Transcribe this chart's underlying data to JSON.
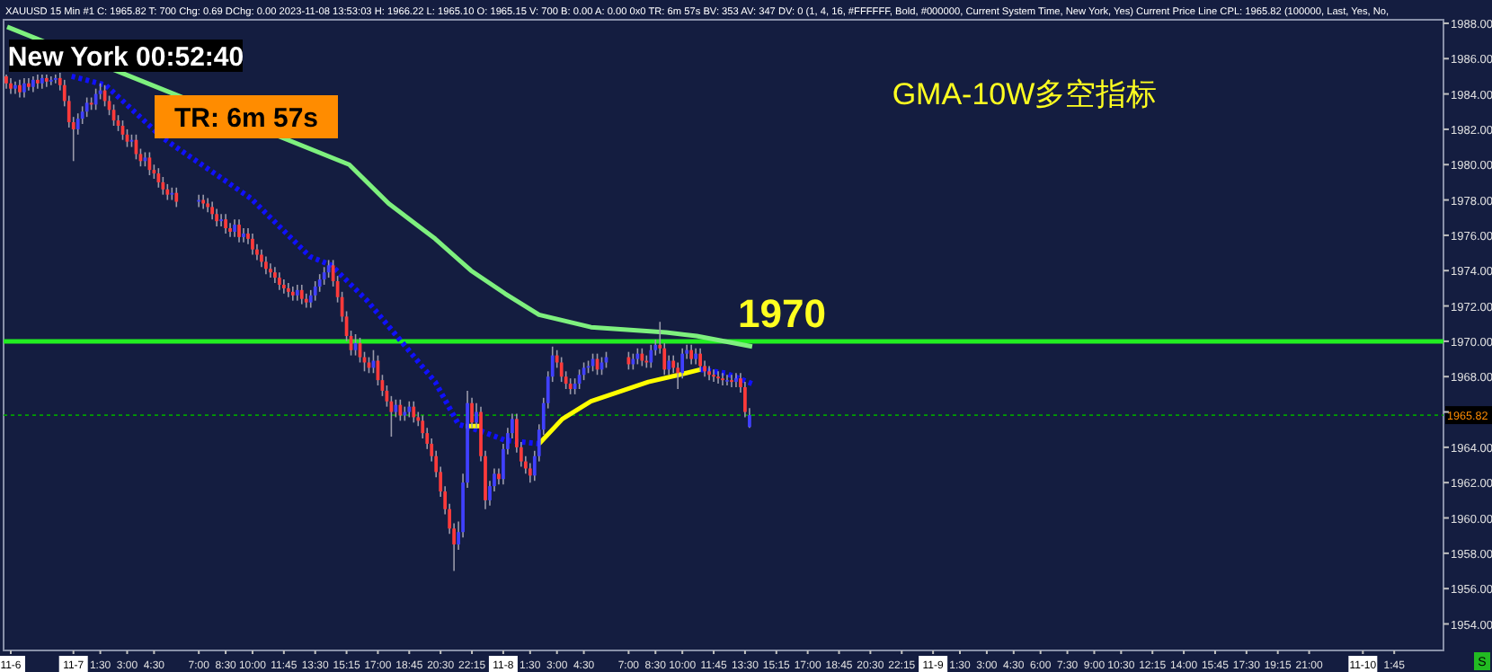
{
  "chart_data": {
    "type": "candlestick",
    "title": "GMA-10W多空指标",
    "subtitle": "XAUUSD  15 Min  #1  C: 1965.82  T: 700  Chg: 0.69  DChg: 0.00  2023-11-08 13:53:03  H: 1966.22  L: 1965.10  O: 1965.15  V: 700  B: 0.00  A: 0.00  0x0  TR: 6m 57s  BV: 353  AV: 347  DV: 0  (1, 4, 16, #FFFFFF, Bold, #000000, Current System Time, New York, Yes)  Current Price Line  CPL: 1965.82  (100000, Last, Yes, No,",
    "annotations": [
      "New York 00:52:40",
      "TR: 6m 57s",
      "S"
    ],
    "x": [
      "2023-11-06T20:15",
      "2023-11-06T20:30",
      "2023-11-06T20:45",
      "2023-11-06T21:00",
      "2023-11-06T21:15",
      "2023-11-06T21:30",
      "2023-11-06T21:45",
      "2023-11-06T22:00",
      "2023-11-06T22:15",
      "2023-11-06T22:30",
      "2023-11-06T22:45",
      "2023-11-06T23:00",
      "2023-11-06T23:15",
      "2023-11-06T23:30",
      "2023-11-06T23:45",
      "2023-11-07T00:00",
      "2023-11-07T00:15",
      "2023-11-07T00:30",
      "2023-11-07T00:45",
      "2023-11-07T01:00",
      "2023-11-07T01:15",
      "2023-11-07T01:30",
      "2023-11-07T01:45",
      "2023-11-07T02:00",
      "2023-11-07T02:15",
      "2023-11-07T02:30",
      "2023-11-07T02:45",
      "2023-11-07T03:00",
      "2023-11-07T03:15",
      "2023-11-07T03:30",
      "2023-11-07T03:45",
      "2023-11-07T04:00",
      "2023-11-07T04:15",
      "2023-11-07T04:30",
      "2023-11-07T04:45",
      "2023-11-07T05:00",
      "2023-11-07T05:15",
      "2023-11-07T05:30",
      "2023-11-07T05:45",
      "2023-11-07T07:00",
      "2023-11-07T07:15",
      "2023-11-07T07:30",
      "2023-11-07T07:45",
      "2023-11-07T08:00",
      "2023-11-07T08:15",
      "2023-11-07T08:30",
      "2023-11-07T08:45",
      "2023-11-07T09:00",
      "2023-11-07T09:15",
      "2023-11-07T09:30",
      "2023-11-07T09:45",
      "2023-11-07T10:00",
      "2023-11-07T10:15",
      "2023-11-07T10:30",
      "2023-11-07T10:45",
      "2023-11-07T11:00",
      "2023-11-07T11:15",
      "2023-11-07T11:30",
      "2023-11-07T11:45",
      "2023-11-07T12:00",
      "2023-11-07T12:15",
      "2023-11-07T12:30",
      "2023-11-07T12:45",
      "2023-11-07T13:00",
      "2023-11-07T13:15",
      "2023-11-07T13:30",
      "2023-11-07T13:45",
      "2023-11-07T14:00",
      "2023-11-07T14:15",
      "2023-11-07T14:30",
      "2023-11-07T14:45",
      "2023-11-07T15:00",
      "2023-11-07T15:15",
      "2023-11-07T15:30",
      "2023-11-07T15:45",
      "2023-11-07T16:00",
      "2023-11-07T16:15",
      "2023-11-07T16:30",
      "2023-11-07T16:45",
      "2023-11-07T17:00",
      "2023-11-07T17:15",
      "2023-11-07T17:30",
      "2023-11-07T17:45",
      "2023-11-07T18:00",
      "2023-11-07T18:15",
      "2023-11-07T18:30",
      "2023-11-07T18:45",
      "2023-11-07T19:00",
      "2023-11-07T19:15",
      "2023-11-07T19:30",
      "2023-11-07T19:45",
      "2023-11-07T20:00",
      "2023-11-07T20:15",
      "2023-11-07T20:30",
      "2023-11-07T20:45",
      "2023-11-07T21:00",
      "2023-11-07T21:15",
      "2023-11-07T21:30",
      "2023-11-07T21:45",
      "2023-11-07T22:00",
      "2023-11-07T22:15",
      "2023-11-07T22:30",
      "2023-11-07T22:45",
      "2023-11-07T23:00",
      "2023-11-07T23:15",
      "2023-11-07T23:30",
      "2023-11-07T23:45",
      "2023-11-08T00:00",
      "2023-11-08T00:15",
      "2023-11-08T00:30",
      "2023-11-08T00:45",
      "2023-11-08T01:00",
      "2023-11-08T01:15",
      "2023-11-08T01:30",
      "2023-11-08T01:45",
      "2023-11-08T02:00",
      "2023-11-08T02:15",
      "2023-11-08T02:30",
      "2023-11-08T02:45",
      "2023-11-08T03:00",
      "2023-11-08T03:15",
      "2023-11-08T03:30",
      "2023-11-08T03:45",
      "2023-11-08T04:00",
      "2023-11-08T04:15",
      "2023-11-08T04:30",
      "2023-11-08T04:45",
      "2023-11-08T05:00",
      "2023-11-08T05:15",
      "2023-11-08T05:30",
      "2023-11-08T05:45",
      "2023-11-08T07:00",
      "2023-11-08T07:15",
      "2023-11-08T07:30",
      "2023-11-08T07:45",
      "2023-11-08T08:00",
      "2023-11-08T08:15",
      "2023-11-08T08:30",
      "2023-11-08T08:45",
      "2023-11-08T09:00",
      "2023-11-08T09:15",
      "2023-11-08T09:30",
      "2023-11-08T09:45",
      "2023-11-08T10:00",
      "2023-11-08T10:15",
      "2023-11-08T10:30",
      "2023-11-08T10:45",
      "2023-11-08T11:00",
      "2023-11-08T11:15",
      "2023-11-08T11:30",
      "2023-11-08T11:45",
      "2023-11-08T12:00",
      "2023-11-08T12:15",
      "2023-11-08T12:30",
      "2023-11-08T12:45",
      "2023-11-08T13:00",
      "2023-11-08T13:15",
      "2023-11-08T13:30",
      "2023-11-08T13:45"
    ],
    "ohlc": [
      [
        1985.0,
        1985.1,
        1984.3,
        1984.6
      ],
      [
        1984.6,
        1984.9,
        1984.0,
        1984.3
      ],
      [
        1984.3,
        1984.7,
        1984.0,
        1984.5
      ],
      [
        1984.5,
        1984.8,
        1983.8,
        1984.1
      ],
      [
        1984.1,
        1984.9,
        1983.8,
        1984.6
      ],
      [
        1984.6,
        1984.9,
        1984.2,
        1984.4
      ],
      [
        1984.4,
        1985.0,
        1984.1,
        1984.8
      ],
      [
        1984.8,
        1985.1,
        1984.3,
        1984.6
      ],
      [
        1984.6,
        1985.1,
        1984.3,
        1984.9
      ],
      [
        1984.9,
        1985.1,
        1984.4,
        1984.7
      ],
      [
        1984.7,
        1985.0,
        1984.5,
        1984.8
      ],
      [
        1984.8,
        1985.1,
        1984.6,
        1984.9
      ],
      [
        1984.9,
        1985.2,
        1984.2,
        1984.5
      ],
      [
        1984.5,
        1984.8,
        1983.3,
        1983.6
      ],
      [
        1983.6,
        1983.9,
        1982.1,
        1982.4
      ],
      [
        1982.4,
        1982.7,
        1980.2,
        1982.0
      ],
      [
        1982.0,
        1982.9,
        1981.7,
        1982.6
      ],
      [
        1982.6,
        1983.3,
        1982.3,
        1983.0
      ],
      [
        1983.0,
        1983.8,
        1982.7,
        1983.5
      ],
      [
        1983.5,
        1983.8,
        1983.1,
        1983.4
      ],
      [
        1983.4,
        1984.3,
        1983.1,
        1984.0
      ],
      [
        1984.0,
        1984.6,
        1983.7,
        1984.2
      ],
      [
        1984.2,
        1984.5,
        1983.3,
        1983.6
      ],
      [
        1983.6,
        1983.9,
        1982.8,
        1983.1
      ],
      [
        1983.1,
        1983.4,
        1982.2,
        1982.5
      ],
      [
        1982.5,
        1982.8,
        1981.9,
        1982.2
      ],
      [
        1982.2,
        1982.5,
        1981.4,
        1981.7
      ],
      [
        1981.7,
        1982.0,
        1981.0,
        1981.3
      ],
      [
        1981.3,
        1981.7,
        1981.0,
        1981.4
      ],
      [
        1981.4,
        1981.7,
        1980.3,
        1980.6
      ],
      [
        1980.6,
        1980.9,
        1979.9,
        1980.2
      ],
      [
        1980.2,
        1980.7,
        1979.9,
        1980.4
      ],
      [
        1980.4,
        1980.7,
        1979.4,
        1979.7
      ],
      [
        1979.7,
        1980.0,
        1979.2,
        1979.5
      ],
      [
        1979.5,
        1979.8,
        1978.7,
        1979.0
      ],
      [
        1979.0,
        1979.3,
        1978.3,
        1978.6
      ],
      [
        1978.6,
        1978.9,
        1978.0,
        1978.3
      ],
      [
        1978.3,
        1978.7,
        1978.0,
        1978.4
      ],
      [
        1978.4,
        1978.7,
        1977.6,
        1977.9
      ],
      [
        1977.9,
        1978.3,
        1977.6,
        1978.0
      ],
      [
        1978.0,
        1978.3,
        1977.5,
        1977.8
      ],
      [
        1977.8,
        1978.1,
        1977.3,
        1977.6
      ],
      [
        1977.6,
        1977.9,
        1976.9,
        1977.2
      ],
      [
        1977.2,
        1977.5,
        1976.5,
        1976.8
      ],
      [
        1976.8,
        1977.2,
        1976.5,
        1976.9
      ],
      [
        1976.9,
        1977.2,
        1976.1,
        1976.4
      ],
      [
        1976.4,
        1976.7,
        1975.9,
        1976.2
      ],
      [
        1976.2,
        1976.9,
        1975.9,
        1976.6
      ],
      [
        1976.6,
        1976.9,
        1975.6,
        1975.9
      ],
      [
        1975.9,
        1976.4,
        1975.6,
        1976.1
      ],
      [
        1976.1,
        1976.4,
        1975.5,
        1975.8
      ],
      [
        1975.8,
        1976.1,
        1974.9,
        1975.2
      ],
      [
        1975.2,
        1975.5,
        1974.6,
        1974.9
      ],
      [
        1974.9,
        1975.2,
        1974.2,
        1974.5
      ],
      [
        1974.5,
        1974.8,
        1973.8,
        1974.1
      ],
      [
        1974.1,
        1974.4,
        1973.6,
        1973.9
      ],
      [
        1973.9,
        1974.2,
        1973.3,
        1973.6
      ],
      [
        1973.6,
        1973.9,
        1972.9,
        1973.2
      ],
      [
        1973.2,
        1973.5,
        1972.7,
        1973.0
      ],
      [
        1973.0,
        1973.3,
        1972.5,
        1972.8
      ],
      [
        1972.8,
        1973.1,
        1972.3,
        1972.6
      ],
      [
        1972.6,
        1973.2,
        1972.3,
        1972.9
      ],
      [
        1972.9,
        1973.2,
        1972.1,
        1972.4
      ],
      [
        1972.4,
        1972.7,
        1971.9,
        1972.2
      ],
      [
        1972.2,
        1972.9,
        1971.9,
        1972.6
      ],
      [
        1972.6,
        1973.4,
        1972.3,
        1973.1
      ],
      [
        1973.1,
        1973.8,
        1972.8,
        1973.5
      ],
      [
        1973.5,
        1974.2,
        1973.2,
        1973.9
      ],
      [
        1973.9,
        1974.6,
        1973.6,
        1974.3
      ],
      [
        1974.3,
        1974.6,
        1973.1,
        1973.4
      ],
      [
        1973.4,
        1973.7,
        1972.2,
        1972.5
      ],
      [
        1972.5,
        1972.8,
        1971.1,
        1971.4
      ],
      [
        1971.4,
        1971.7,
        1970.0,
        1970.3
      ],
      [
        1970.3,
        1970.6,
        1969.2,
        1969.5
      ],
      [
        1969.5,
        1970.4,
        1969.2,
        1969.9
      ],
      [
        1969.9,
        1970.2,
        1968.8,
        1969.1
      ],
      [
        1969.1,
        1969.4,
        1968.3,
        1968.8
      ],
      [
        1968.8,
        1969.1,
        1968.2,
        1968.5
      ],
      [
        1968.5,
        1969.5,
        1968.2,
        1968.9
      ],
      [
        1968.9,
        1969.2,
        1967.5,
        1967.8
      ],
      [
        1967.8,
        1968.1,
        1966.9,
        1967.2
      ],
      [
        1967.2,
        1967.5,
        1966.3,
        1966.6
      ],
      [
        1966.6,
        1966.9,
        1964.6,
        1966.0
      ],
      [
        1966.0,
        1966.7,
        1965.7,
        1966.4
      ],
      [
        1966.4,
        1966.7,
        1965.5,
        1965.8
      ],
      [
        1965.8,
        1966.3,
        1965.5,
        1966.0
      ],
      [
        1966.0,
        1966.6,
        1965.7,
        1966.3
      ],
      [
        1966.3,
        1966.6,
        1965.4,
        1965.7
      ],
      [
        1965.7,
        1966.0,
        1965.2,
        1965.5
      ],
      [
        1965.5,
        1965.8,
        1964.5,
        1964.8
      ],
      [
        1964.8,
        1965.1,
        1963.9,
        1964.2
      ],
      [
        1964.2,
        1964.5,
        1963.2,
        1963.5
      ],
      [
        1963.5,
        1963.8,
        1962.3,
        1962.6
      ],
      [
        1962.6,
        1962.9,
        1961.2,
        1961.5
      ],
      [
        1961.5,
        1961.8,
        1960.2,
        1960.5
      ],
      [
        1960.5,
        1960.8,
        1959.1,
        1959.4
      ],
      [
        1959.4,
        1959.7,
        1957.0,
        1958.5
      ],
      [
        1958.5,
        1959.8,
        1958.2,
        1959.2
      ],
      [
        1959.2,
        1962.5,
        1958.9,
        1962.0
      ],
      [
        1962.0,
        1967.2,
        1961.7,
        1966.5
      ],
      [
        1966.5,
        1966.8,
        1965.1,
        1965.4
      ],
      [
        1965.4,
        1966.5,
        1965.1,
        1966.0
      ],
      [
        1966.0,
        1966.3,
        1963.2,
        1963.5
      ],
      [
        1963.5,
        1963.8,
        1960.5,
        1961.0
      ],
      [
        1961.0,
        1962.1,
        1960.7,
        1961.8
      ],
      [
        1961.8,
        1962.8,
        1961.5,
        1962.5
      ],
      [
        1962.5,
        1962.8,
        1961.9,
        1962.2
      ],
      [
        1962.2,
        1964.2,
        1961.9,
        1963.9
      ],
      [
        1963.9,
        1965.1,
        1963.6,
        1964.8
      ],
      [
        1964.8,
        1965.9,
        1964.5,
        1965.6
      ],
      [
        1965.6,
        1965.9,
        1963.7,
        1964.0
      ],
      [
        1964.0,
        1964.3,
        1962.9,
        1963.2
      ],
      [
        1963.2,
        1963.5,
        1962.5,
        1962.8
      ],
      [
        1962.8,
        1963.1,
        1962.0,
        1962.4
      ],
      [
        1962.4,
        1963.8,
        1962.1,
        1963.5
      ],
      [
        1963.5,
        1965.3,
        1963.2,
        1965.0
      ],
      [
        1965.0,
        1966.8,
        1964.7,
        1966.5
      ],
      [
        1966.5,
        1968.3,
        1966.2,
        1968.0
      ],
      [
        1968.0,
        1969.7,
        1967.7,
        1969.2
      ],
      [
        1969.2,
        1969.5,
        1968.5,
        1968.8
      ],
      [
        1968.8,
        1969.1,
        1967.7,
        1968.0
      ],
      [
        1968.0,
        1968.3,
        1967.3,
        1967.6
      ],
      [
        1967.6,
        1967.9,
        1967.0,
        1967.3
      ],
      [
        1967.3,
        1967.9,
        1967.0,
        1967.6
      ],
      [
        1967.6,
        1968.4,
        1967.3,
        1968.1
      ],
      [
        1968.1,
        1968.8,
        1967.8,
        1968.5
      ],
      [
        1968.5,
        1968.9,
        1968.2,
        1968.6
      ],
      [
        1968.6,
        1969.3,
        1968.3,
        1969.0
      ],
      [
        1969.0,
        1969.3,
        1968.1,
        1968.4
      ],
      [
        1968.4,
        1969.1,
        1968.1,
        1968.8
      ],
      [
        1968.8,
        1969.4,
        1968.5,
        1969.1
      ],
      [
        1969.1,
        1969.4,
        1968.4,
        1968.7
      ],
      [
        1968.7,
        1969.3,
        1968.4,
        1969.0
      ],
      [
        1969.0,
        1969.6,
        1968.7,
        1969.3
      ],
      [
        1969.3,
        1969.6,
        1968.6,
        1968.9
      ],
      [
        1968.9,
        1969.2,
        1968.5,
        1968.8
      ],
      [
        1968.8,
        1969.8,
        1968.5,
        1969.5
      ],
      [
        1969.5,
        1970.1,
        1969.2,
        1969.8
      ],
      [
        1969.8,
        1971.1,
        1969.3,
        1969.6
      ],
      [
        1969.6,
        1969.9,
        1968.1,
        1968.4
      ],
      [
        1968.4,
        1969.2,
        1968.1,
        1968.9
      ],
      [
        1968.9,
        1969.2,
        1968.2,
        1968.5
      ],
      [
        1968.5,
        1968.8,
        1967.3,
        1968.2
      ],
      [
        1968.2,
        1969.6,
        1967.9,
        1969.3
      ],
      [
        1969.3,
        1969.8,
        1969.0,
        1969.5
      ],
      [
        1969.5,
        1969.8,
        1968.7,
        1969.0
      ],
      [
        1969.0,
        1969.6,
        1968.7,
        1969.3
      ],
      [
        1969.3,
        1969.6,
        1968.3,
        1968.6
      ],
      [
        1968.6,
        1968.9,
        1968.0,
        1968.3
      ],
      [
        1968.3,
        1968.6,
        1967.8,
        1968.1
      ],
      [
        1968.1,
        1968.4,
        1967.7,
        1968.0
      ],
      [
        1968.0,
        1968.3,
        1967.6,
        1967.9
      ],
      [
        1967.9,
        1968.2,
        1967.5,
        1967.8
      ],
      [
        1967.8,
        1968.1,
        1967.5,
        1967.8
      ],
      [
        1967.8,
        1968.1,
        1967.4,
        1967.7
      ],
      [
        1967.7,
        1968.2,
        1967.4,
        1967.9
      ],
      [
        1967.9,
        1968.2,
        1967.1,
        1967.4
      ],
      [
        1967.4,
        1967.7,
        1965.7,
        1966.0
      ],
      [
        1965.15,
        1966.22,
        1965.1,
        1965.82
      ]
    ],
    "series": [
      {
        "type": "line",
        "color": "#7ef07e",
        "line_style": "solid",
        "x": [
          "2023-11-06T20:18",
          "2023-11-07T15:24",
          "2023-11-07T17:36",
          "2023-11-07T20:12",
          "2023-11-07T22:12",
          "2023-11-08T00:06",
          "2023-11-08T02:00",
          "2023-11-08T04:54",
          "2023-11-08T09:06",
          "2023-11-08T10:48",
          "2023-11-08T13:54"
        ],
        "values": [
          1987.8,
          1980.0,
          1977.8,
          1975.8,
          1974.0,
          1972.7,
          1971.5,
          1970.8,
          1970.5,
          1970.3,
          1969.7
        ]
      },
      {
        "type": "line",
        "color": "#1010ff",
        "line_style": "dotted",
        "x": [
          "2023-11-06T23:54",
          "2023-11-07T01:48",
          "2023-11-07T05:00",
          "2023-11-07T09:54",
          "2023-11-07T13:12",
          "2023-11-07T14:24",
          "2023-11-07T16:24",
          "2023-11-07T18:18",
          "2023-11-07T20:12",
          "2023-11-07T21:30",
          "2023-11-07T22:48",
          "2023-11-08T00:06",
          "2023-11-08T02:00",
          "2023-11-08T06:00",
          "2023-11-08T11:00",
          "2023-11-08T12:24",
          "2023-11-08T13:54"
        ],
        "values": [
          1985.0,
          1984.5,
          1981.5,
          1978.1,
          1974.8,
          1974.3,
          1972.3,
          1970.0,
          1967.7,
          1965.3,
          1964.9,
          1964.4,
          1964.2,
          null,
          1968.4,
          1968.2,
          1967.6
        ]
      },
      {
        "type": "line",
        "color": "#ffff00",
        "line_style": "solid",
        "x": [
          "2023-11-07T21:54",
          "2023-11-07T22:48",
          "2023-11-07T23:30",
          "2023-11-08T02:00",
          "2023-11-08T03:18",
          "2023-11-08T04:54",
          "2023-11-08T08:06",
          "2023-11-08T09:48",
          "2023-11-08T11:00"
        ],
        "values": [
          1965.2,
          1965.2,
          null,
          1964.2,
          1965.6,
          1966.6,
          1967.7,
          1968.1,
          1968.4
        ]
      }
    ],
    "ref_lines": [
      {
        "axis": "y",
        "value": 1970,
        "label": "1970",
        "color": "#22ee22",
        "line_style": "solid"
      },
      {
        "axis": "y",
        "value": 1965.82,
        "label": "1965.82",
        "color": "#00a000",
        "line_style": "dotted"
      }
    ],
    "xlim": [
      "2023-11-06T20:06",
      "2023-11-10T04:30"
    ],
    "ylim": [
      1952.5,
      1988.2
    ],
    "xticks": [
      {
        "value": "2023-11-06T20:30",
        "label": "11-6"
      },
      {
        "value": "2023-11-07T00:00",
        "label": "11-7"
      },
      {
        "value": "2023-11-07T01:30",
        "label": "1:30"
      },
      {
        "value": "2023-11-07T03:00",
        "label": "3:00"
      },
      {
        "value": "2023-11-07T04:30",
        "label": "4:30"
      },
      {
        "value": "2023-11-07T07:00",
        "label": "7:00"
      },
      {
        "value": "2023-11-07T08:30",
        "label": "8:30"
      },
      {
        "value": "2023-11-07T10:00",
        "label": "10:00"
      },
      {
        "value": "2023-11-07T11:45",
        "label": "11:45"
      },
      {
        "value": "2023-11-07T13:30",
        "label": "13:30"
      },
      {
        "value": "2023-11-07T15:15",
        "label": "15:15"
      },
      {
        "value": "2023-11-07T17:00",
        "label": "17:00"
      },
      {
        "value": "2023-11-07T18:45",
        "label": "18:45"
      },
      {
        "value": "2023-11-07T20:30",
        "label": "20:30"
      },
      {
        "value": "2023-11-07T22:15",
        "label": "22:15"
      },
      {
        "value": "2023-11-08T00:00",
        "label": "11-8"
      },
      {
        "value": "2023-11-08T01:30",
        "label": "1:30"
      },
      {
        "value": "2023-11-08T03:00",
        "label": "3:00"
      },
      {
        "value": "2023-11-08T04:30",
        "label": "4:30"
      },
      {
        "value": "2023-11-08T07:00",
        "label": "7:00"
      },
      {
        "value": "2023-11-08T08:30",
        "label": "8:30"
      },
      {
        "value": "2023-11-08T10:00",
        "label": "10:00"
      },
      {
        "value": "2023-11-08T11:45",
        "label": "11:45"
      },
      {
        "value": "2023-11-08T13:30",
        "label": "13:30"
      },
      {
        "value": "2023-11-08T15:15",
        "label": "15:15"
      },
      {
        "value": "2023-11-08T17:00",
        "label": "17:00"
      },
      {
        "value": "2023-11-08T18:45",
        "label": "18:45"
      },
      {
        "value": "2023-11-08T20:30",
        "label": "20:30"
      },
      {
        "value": "2023-11-08T22:15",
        "label": "22:15"
      },
      {
        "value": "2023-11-09T00:00",
        "label": "11-9"
      },
      {
        "value": "2023-11-09T01:30",
        "label": "1:30"
      },
      {
        "value": "2023-11-09T03:00",
        "label": "3:00"
      },
      {
        "value": "2023-11-09T04:30",
        "label": "4:30"
      },
      {
        "value": "2023-11-09T06:00",
        "label": "6:00"
      },
      {
        "value": "2023-11-09T07:30",
        "label": "7:30"
      },
      {
        "value": "2023-11-09T09:00",
        "label": "9:00"
      },
      {
        "value": "2023-11-09T10:30",
        "label": "10:30"
      },
      {
        "value": "2023-11-09T12:15",
        "label": "12:15"
      },
      {
        "value": "2023-11-09T14:00",
        "label": "14:00"
      },
      {
        "value": "2023-11-09T15:45",
        "label": "15:45"
      },
      {
        "value": "2023-11-09T17:30",
        "label": "17:30"
      },
      {
        "value": "2023-11-09T19:15",
        "label": "19:15"
      },
      {
        "value": "2023-11-09T21:00",
        "label": "21:00"
      },
      {
        "value": "2023-11-10T00:00",
        "label": "11-10"
      },
      {
        "value": "2023-11-10T01:45",
        "label": "1:45"
      }
    ],
    "yticks": [
      {
        "value": 1954,
        "label": "1954.00"
      },
      {
        "value": 1956,
        "label": "1956.00"
      },
      {
        "value": 1958,
        "label": "1958.00"
      },
      {
        "value": 1960,
        "label": "1960.00"
      },
      {
        "value": 1962,
        "label": "1962.00"
      },
      {
        "value": 1964,
        "label": "1964.00"
      },
      {
        "value": 1966,
        "label": null
      },
      {
        "value": 1968,
        "label": "1968.00"
      },
      {
        "value": 1970,
        "label": "1970.00"
      },
      {
        "value": 1972,
        "label": "1972.00"
      },
      {
        "value": 1974,
        "label": "1974.00"
      },
      {
        "value": 1976,
        "label": "1976.00"
      },
      {
        "value": 1978,
        "label": "1978.00"
      },
      {
        "value": 1980,
        "label": "1980.00"
      },
      {
        "value": 1982,
        "label": "1982.00"
      },
      {
        "value": 1984,
        "label": "1984.00"
      },
      {
        "value": 1986,
        "label": "1986.00"
      },
      {
        "value": 1988,
        "label": "1988.00"
      }
    ]
  }
}
